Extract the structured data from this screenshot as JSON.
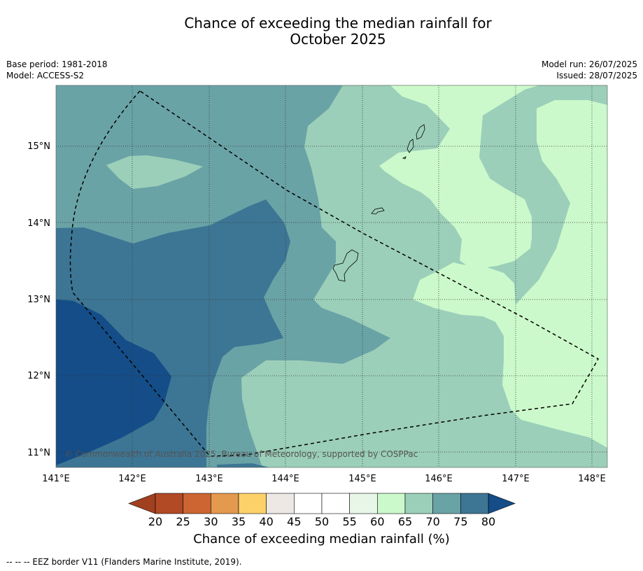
{
  "title": {
    "line1": "Chance of exceeding the median rainfall for",
    "line2": "October 2025"
  },
  "meta": {
    "base_period": "Base period: 1981-2018",
    "model": "Model: ACCESS-S2",
    "model_run": "Model run: 26/07/2025",
    "issued": "Issued: 28/07/2025"
  },
  "map": {
    "lon_labels": [
      "141°E",
      "142°E",
      "143°E",
      "144°E",
      "145°E",
      "146°E",
      "147°E",
      "148°E"
    ],
    "lat_labels": [
      "15°N",
      "14°N",
      "13°N",
      "12°N",
      "11°N"
    ],
    "copyright": "© Commonwealth of Australia 2025, Bureau of Meteorology, supported by COSPPac"
  },
  "colorbar": {
    "ticks": [
      "20",
      "25",
      "30",
      "35",
      "40",
      "45",
      "50",
      "55",
      "60",
      "65",
      "70",
      "75",
      "80"
    ],
    "colors": [
      "#b14a25",
      "#cc6531",
      "#e3994e",
      "#fdd169",
      "#ede8e4",
      "#ffffff",
      "#ffffff",
      "#e8f6e8",
      "#cbf9cb",
      "#9bcfb9",
      "#6aa3a6",
      "#3d7694",
      "#144d87"
    ],
    "under_color": "#a0401f",
    "over_color": "#144d87",
    "label": "Chance of exceeding median rainfall (%)"
  },
  "footnote": "--  --  -- EEZ border V11 (Flanders Marine Institute, 2019)."
}
